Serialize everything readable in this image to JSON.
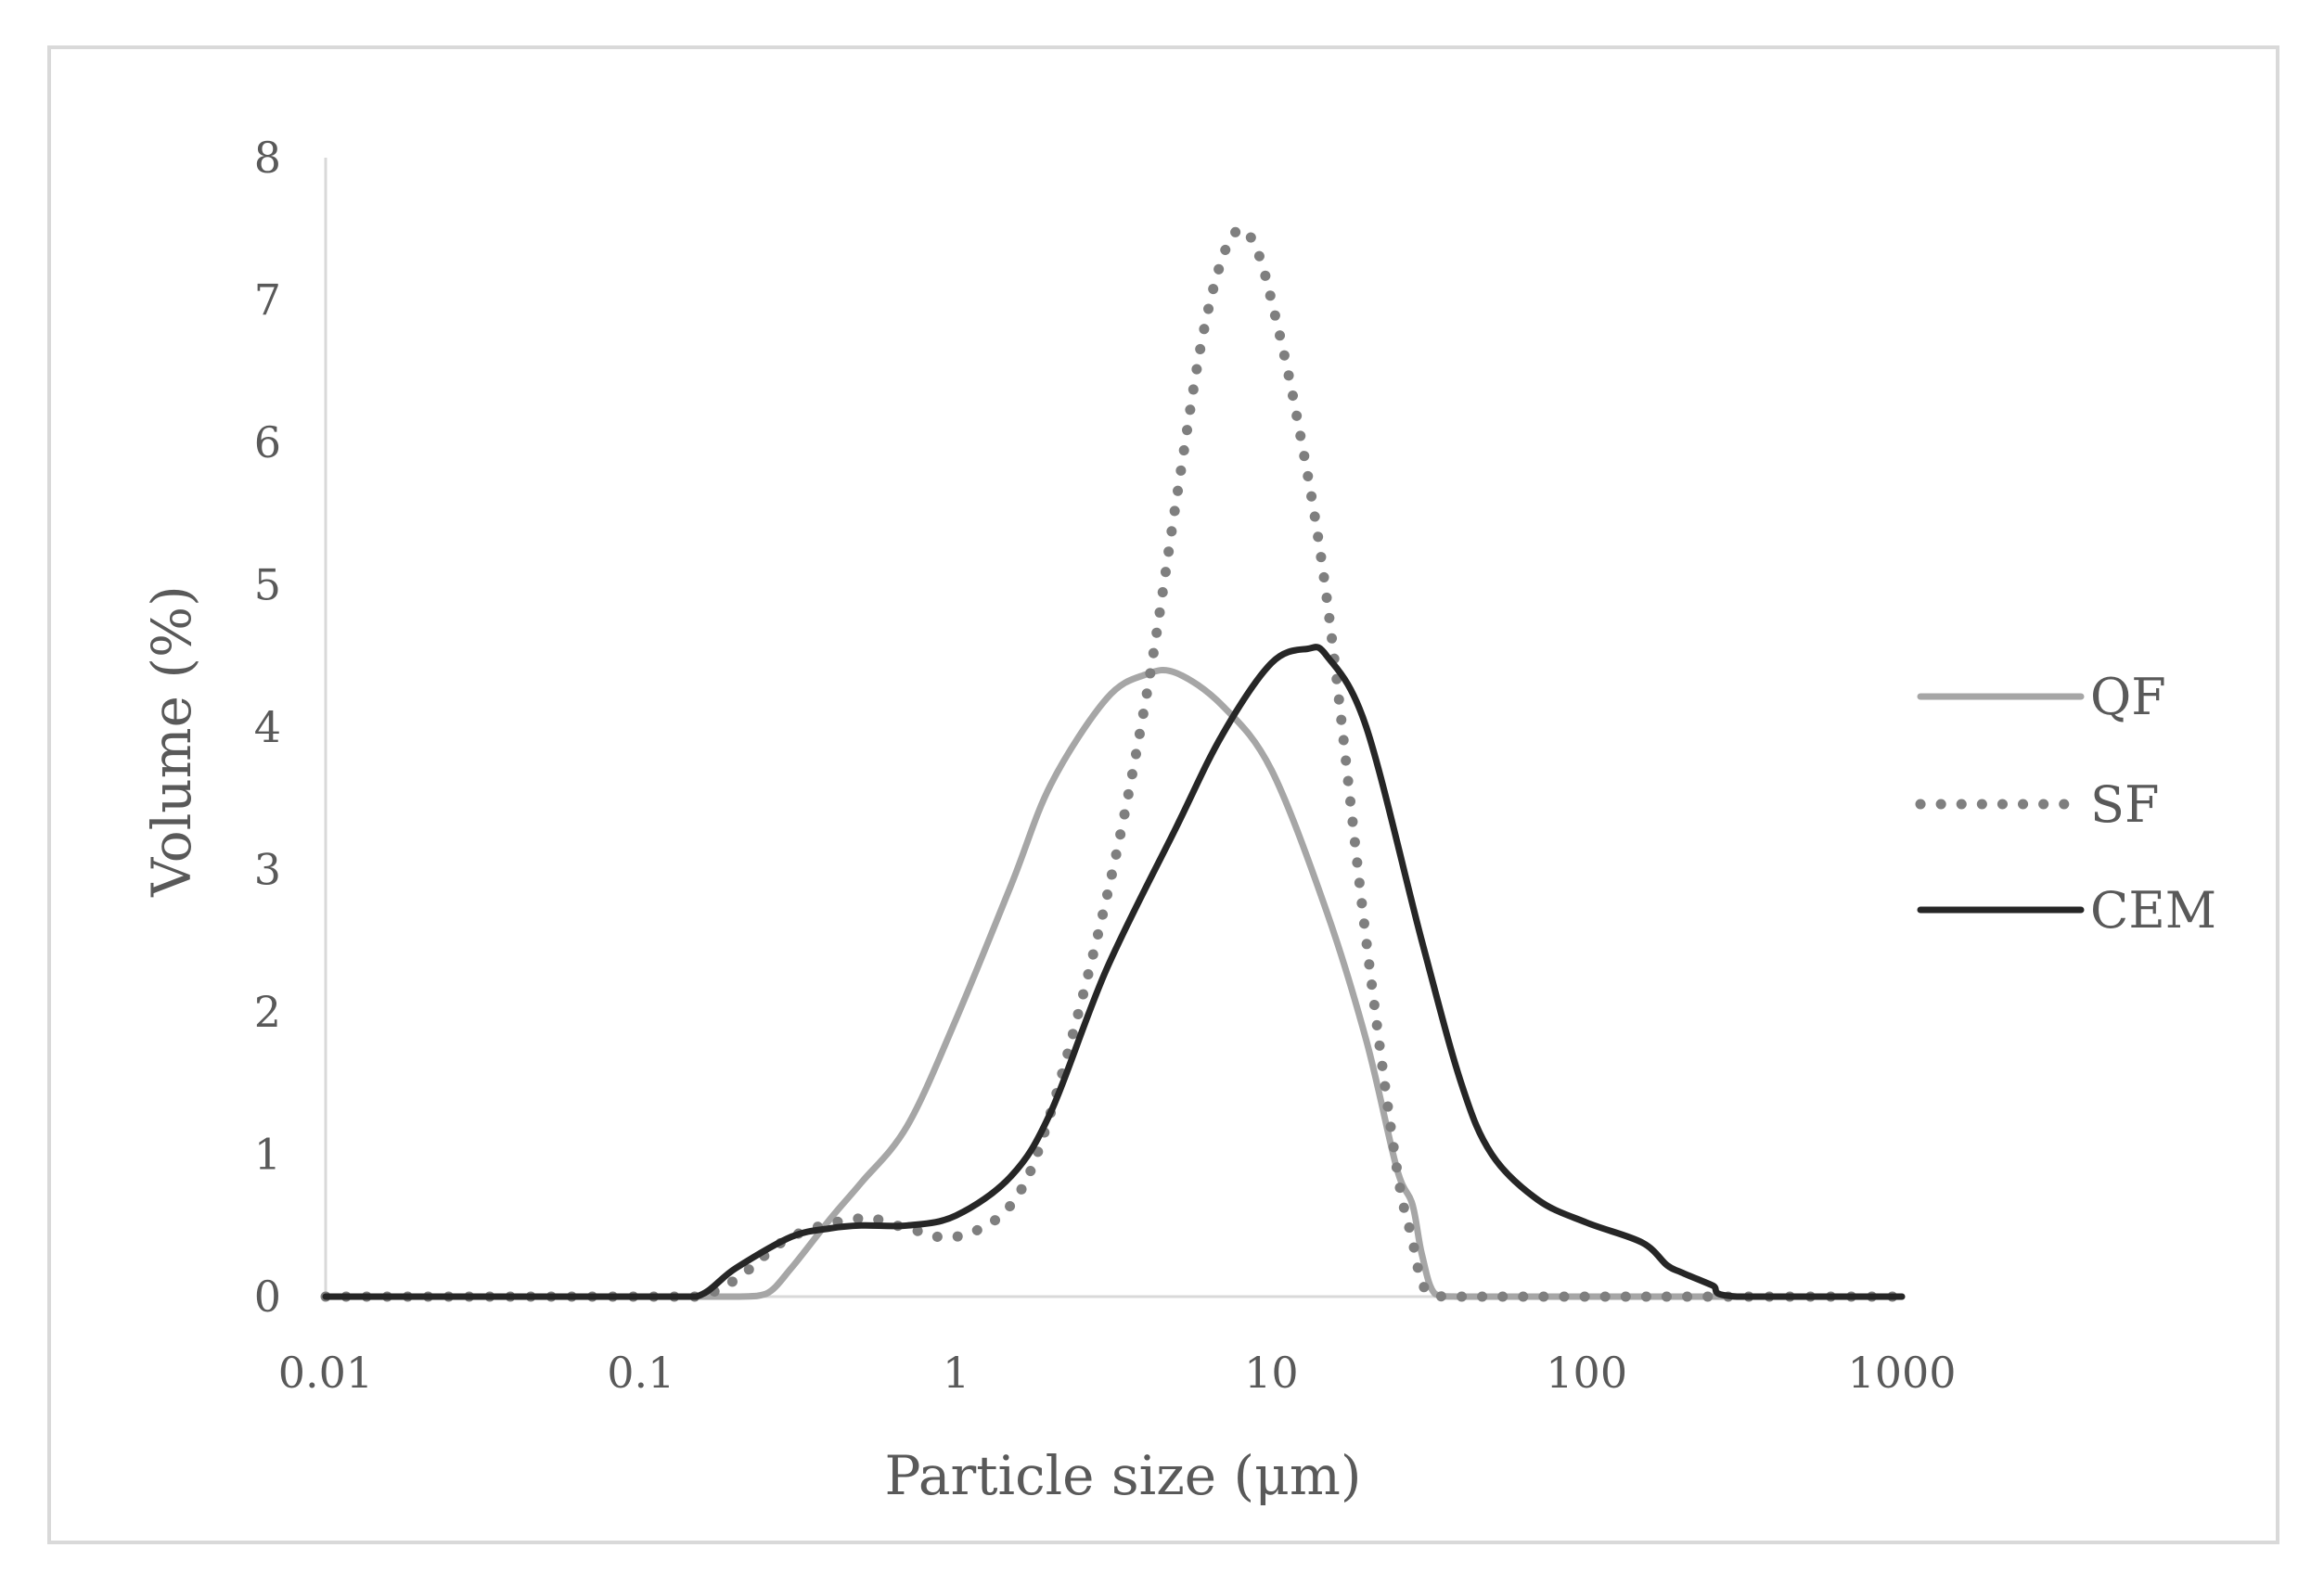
{
  "chart_data": {
    "type": "line",
    "xlabel": "Particle size (μm)",
    "ylabel": "Volume (%)",
    "xscale": "log",
    "xlim": [
      0.01,
      1000
    ],
    "ylim": [
      0,
      8
    ],
    "xticks": [
      "0.01",
      "0.1",
      "1",
      "10",
      "100",
      "1000"
    ],
    "yticks": [
      "0",
      "1",
      "2",
      "3",
      "4",
      "5",
      "6",
      "7",
      "8"
    ],
    "grid": false,
    "legend_position": "right",
    "series": [
      {
        "name": "QF",
        "color": "#a6a6a6",
        "style": "solid",
        "x": [
          0.01,
          0.1,
          0.2,
          0.25,
          0.3,
          0.4,
          0.5,
          0.7,
          1.0,
          1.5,
          2.0,
          3.0,
          4.0,
          5.0,
          7.0,
          10.0,
          15.0,
          20.0,
          25.0,
          28.0,
          30.0,
          33.0,
          40.0,
          100.0,
          1000.0
        ],
        "y": [
          0,
          0,
          0,
          0.02,
          0.2,
          0.55,
          0.8,
          1.2,
          1.95,
          2.9,
          3.6,
          4.2,
          4.37,
          4.38,
          4.15,
          3.7,
          2.7,
          1.8,
          0.9,
          0.65,
          0.3,
          0.02,
          0,
          0,
          0
        ]
      },
      {
        "name": "SF",
        "color": "#7f7f7f",
        "style": "dotted",
        "x": [
          0.01,
          0.1,
          0.15,
          0.2,
          0.3,
          0.5,
          0.7,
          1.0,
          1.5,
          2.0,
          3.0,
          4.0,
          5.0,
          6.0,
          7.0,
          8.0,
          9.0,
          10.0,
          12.0,
          15.0,
          20.0,
          25.0,
          28.0,
          30.0,
          33.0,
          40.0,
          100.0,
          1000.0
        ],
        "y": [
          0,
          0,
          0,
          0.12,
          0.42,
          0.55,
          0.48,
          0.42,
          0.65,
          1.3,
          2.8,
          4.2,
          5.6,
          6.7,
          7.3,
          7.5,
          7.35,
          7.0,
          6.2,
          4.9,
          2.5,
          0.9,
          0.4,
          0.1,
          0.01,
          0,
          0,
          0
        ]
      },
      {
        "name": "CEM",
        "color": "#262626",
        "style": "solid",
        "x": [
          0.01,
          0.1,
          0.15,
          0.2,
          0.3,
          0.4,
          0.5,
          0.7,
          1.0,
          1.5,
          2.0,
          3.0,
          5.0,
          7.0,
          10.0,
          13.0,
          15.0,
          20.0,
          30.0,
          40.0,
          50.0,
          70.0,
          100.0,
          150.0,
          180.0,
          200.0,
          250.0,
          300.0,
          1000.0
        ],
        "y": [
          0,
          0,
          0,
          0.2,
          0.42,
          0.48,
          0.5,
          0.5,
          0.57,
          0.85,
          1.3,
          2.3,
          3.3,
          3.95,
          4.45,
          4.55,
          4.5,
          4.0,
          2.5,
          1.5,
          1.0,
          0.68,
          0.52,
          0.38,
          0.22,
          0.17,
          0.08,
          0.0,
          0
        ]
      }
    ]
  }
}
